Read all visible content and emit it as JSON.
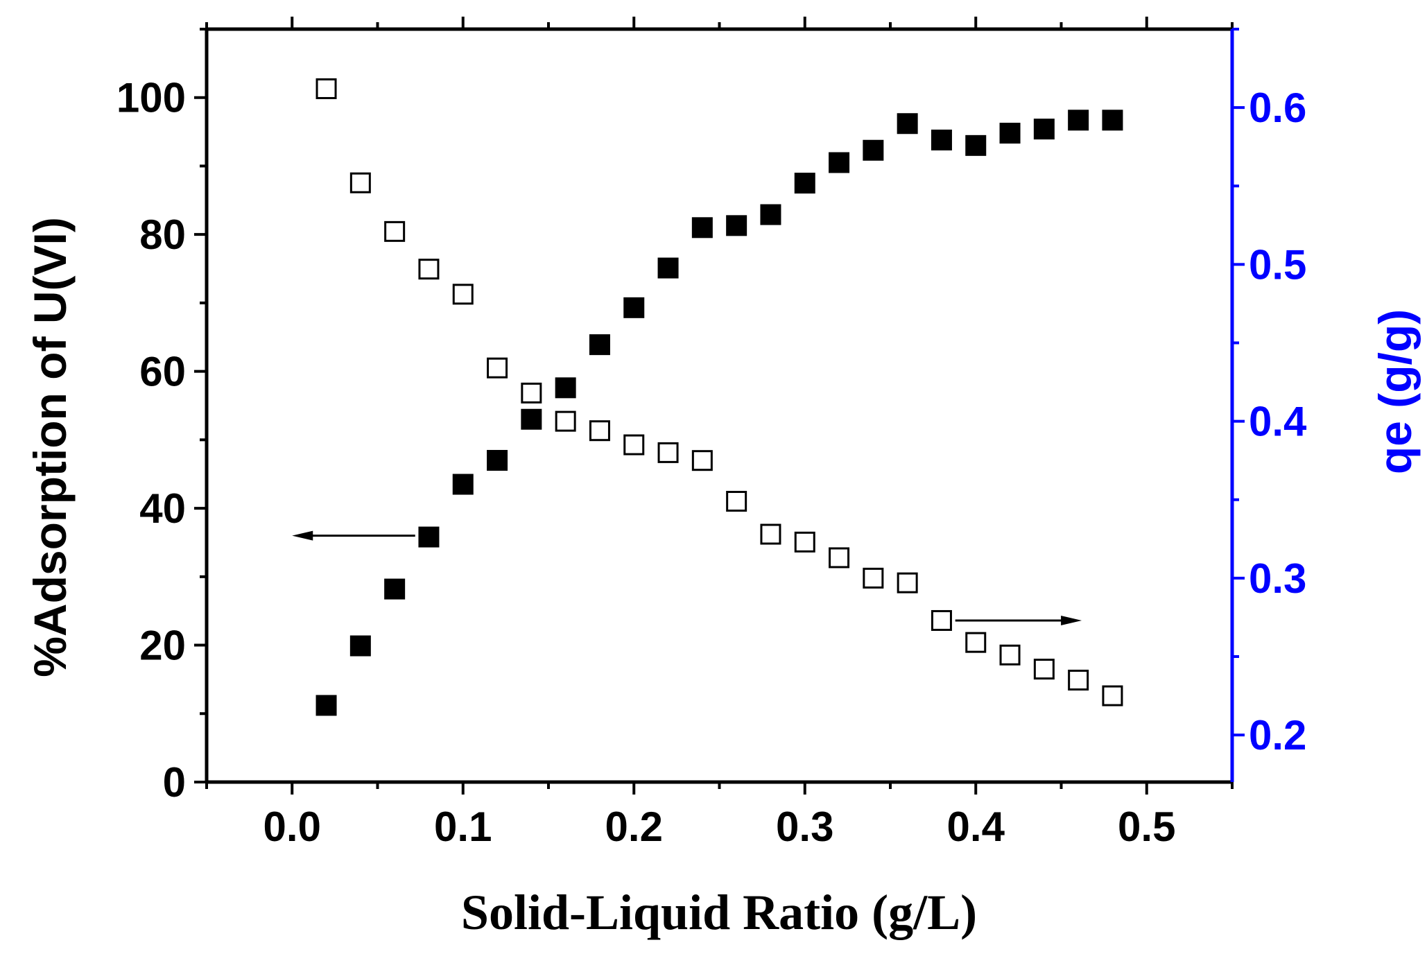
{
  "chart_data": {
    "type": "scatter",
    "xlabel": "Solid-Liquid Ratio (g/L)",
    "ylabel_left": "%Adsorption of U(VI)",
    "ylabel_right": "qe (g/g)",
    "xlim": [
      -0.05,
      0.55
    ],
    "ylim_left": [
      0,
      110
    ],
    "ylim_right": [
      0.17,
      0.65
    ],
    "x_ticks": [
      "0.0",
      "0.1",
      "0.2",
      "0.3",
      "0.4",
      "0.5"
    ],
    "y_left_ticks": [
      "0",
      "20",
      "40",
      "60",
      "80",
      "100"
    ],
    "y_right_ticks": [
      "0.2",
      "0.3",
      "0.4",
      "0.5",
      "0.6"
    ],
    "right_axis_color": "#0000ff",
    "series": [
      {
        "axis": "left",
        "marker": "filled-square",
        "x": [
          0.02,
          0.04,
          0.06,
          0.08,
          0.1,
          0.12,
          0.14,
          0.16,
          0.18,
          0.2,
          0.22,
          0.24,
          0.26,
          0.28,
          0.3,
          0.32,
          0.34,
          0.36,
          0.38,
          0.4,
          0.42,
          0.44,
          0.46,
          0.48
        ],
        "values": [
          11.2,
          19.9,
          28.2,
          35.8,
          43.5,
          47.0,
          53.0,
          57.6,
          63.9,
          69.3,
          75.1,
          81.0,
          81.3,
          82.9,
          87.5,
          90.5,
          92.3,
          96.2,
          93.8,
          93.0,
          94.8,
          95.4,
          96.7,
          96.7
        ]
      },
      {
        "axis": "right",
        "marker": "open-square",
        "x": [
          0.02,
          0.04,
          0.06,
          0.08,
          0.1,
          0.12,
          0.14,
          0.16,
          0.18,
          0.2,
          0.22,
          0.24,
          0.26,
          0.28,
          0.3,
          0.32,
          0.34,
          0.36,
          0.38,
          0.4,
          0.42,
          0.44,
          0.46,
          0.48
        ],
        "values": [
          0.612,
          0.552,
          0.521,
          0.497,
          0.481,
          0.434,
          0.418,
          0.4,
          0.394,
          0.385,
          0.38,
          0.375,
          0.349,
          0.328,
          0.323,
          0.313,
          0.3,
          0.297,
          0.273,
          0.259,
          0.251,
          0.242,
          0.235,
          0.225
        ]
      }
    ],
    "annotations": [
      {
        "type": "arrow",
        "direction": "left",
        "points_to": "left axis"
      },
      {
        "type": "arrow",
        "direction": "right",
        "points_to": "right axis"
      }
    ]
  }
}
